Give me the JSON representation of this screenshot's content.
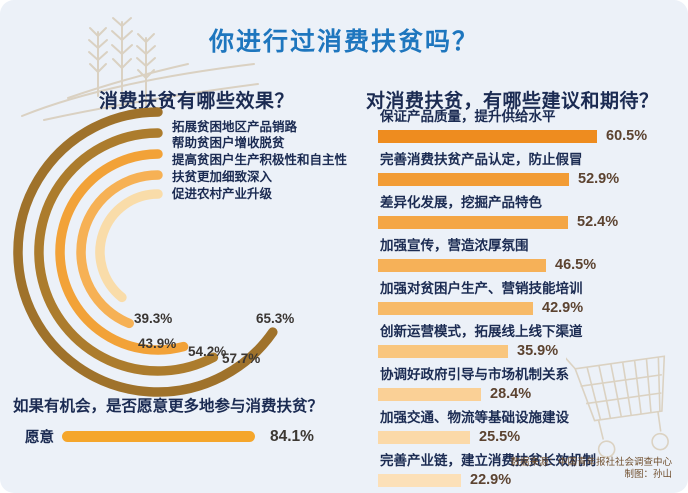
{
  "page_title": "你进行过消费扶贫吗？",
  "colors": {
    "background": "#ECF1F8",
    "title_blue": "#1E76BE",
    "heading_navy": "#1B2B52",
    "value_dark": "#3A3633",
    "value_brown": "#5C4330",
    "decor_beige": "#DAD1C2",
    "willing_bar": "#F5A62B",
    "ring_colors": [
      "#9F722B",
      "#AC7C2D",
      "#F2A238",
      "#F6B155",
      "#F9DCA9"
    ],
    "bar_colors": [
      "#EE8C1F",
      "#F29C35",
      "#F4A645",
      "#F6B158",
      "#F7BA68",
      "#F9C67E",
      "#FAD096",
      "#FBD9A8",
      "#FCE0B8"
    ]
  },
  "chart_data": [
    {
      "id": "effects",
      "type": "bar",
      "variant": "radial-arcs",
      "title": "消费扶贫有哪些效果？",
      "unit": "%",
      "categories": [
        "拓展贫困地区产品销路",
        "帮助贫困户增收脱贫",
        "提高贫困户生产积极性和自主性",
        "扶贫更加细致深入",
        "促进农村产业升级"
      ],
      "values": [
        65.3,
        57.7,
        54.2,
        43.9,
        39.3
      ],
      "value_labels": [
        "65.3%",
        "57.7%",
        "54.2%",
        "43.9%",
        "39.3%"
      ],
      "value_range": [
        0,
        100
      ],
      "legend": "none",
      "grid": false
    },
    {
      "id": "willingness",
      "type": "bar",
      "orientation": "horizontal",
      "title": "如果有机会，是否愿意更多地参与消费扶贫？",
      "unit": "%",
      "categories": [
        "愿意"
      ],
      "values": [
        84.1
      ],
      "value_labels": [
        "84.1%"
      ],
      "value_range": [
        0,
        100
      ],
      "legend": "none",
      "grid": false
    },
    {
      "id": "suggestions",
      "type": "bar",
      "orientation": "horizontal",
      "title": "对消费扶贫，有哪些建议和期待？",
      "unit": "%",
      "categories": [
        "保证产品质量，提升供给水平",
        "完善消费扶贫产品认定，防止假冒",
        "差异化发展，挖掘产品特色",
        "加强宣传，营造浓厚氛围",
        "加强对贫困户生产、营销技能培训",
        "创新运营模式，拓展线上线下渠道",
        "协调好政府引导与市场机制关系",
        "加强交通、物流等基础设施建设",
        "完善产业链，建立消费扶贫长效机制"
      ],
      "values": [
        60.5,
        52.9,
        52.4,
        46.5,
        42.9,
        35.9,
        28.4,
        25.5,
        22.9
      ],
      "value_labels": [
        "60.5%",
        "52.9%",
        "52.4%",
        "46.5%",
        "42.9%",
        "35.9%",
        "28.4%",
        "25.5%",
        "22.9%"
      ],
      "value_range": [
        0,
        100
      ],
      "legend": "none",
      "grid": false
    }
  ],
  "footer": {
    "source": "数据来源：中国青年报社社会调查中心",
    "credit": "制图：孙山"
  }
}
